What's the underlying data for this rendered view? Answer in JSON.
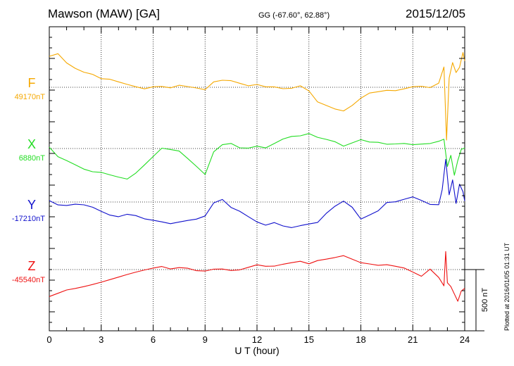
{
  "header": {
    "station": "Mawson (MAW)  [GA]",
    "coords": "GG (-67.60°,  62.88°)",
    "date": "2015/12/05"
  },
  "plotted_note": "Plotted at 2016/01/05 01:31  UT",
  "scale_label": "500 nT",
  "colors": {
    "F": "#f5a800",
    "X": "#22dd22",
    "Y": "#1010cc",
    "Z": "#ee1111"
  },
  "chart_data": {
    "type": "line",
    "xlabel": "U T (hour)",
    "xlim": [
      0,
      24
    ],
    "xticks": [
      "0",
      "3",
      "6",
      "9",
      "12",
      "15",
      "18",
      "21",
      "24"
    ],
    "ylim_nT": [
      -4.2,
      2.5
    ],
    "series": [
      {
        "name": "F",
        "baseline_label": "49170nT",
        "baseline_nT": 0,
        "x": [
          0,
          0.5,
          1,
          1.5,
          2,
          2.5,
          3,
          3.5,
          4,
          4.5,
          5,
          5.5,
          6,
          6.5,
          7,
          7.5,
          8,
          8.5,
          9,
          9.5,
          10,
          10.5,
          11,
          11.5,
          12,
          12.5,
          13,
          13.5,
          14,
          14.5,
          15,
          15.5,
          16,
          16.5,
          17,
          17.5,
          18,
          18.5,
          19,
          19.5,
          20,
          20.5,
          21,
          21.5,
          22,
          22.5,
          22.8,
          22.95,
          23.1,
          23.3,
          23.5,
          23.7,
          23.9,
          24
        ],
        "y": [
          0.8,
          0.85,
          0.6,
          0.45,
          0.35,
          0.3,
          0.2,
          0.2,
          0.15,
          0.1,
          0.05,
          0.0,
          0.05,
          0.05,
          0.0,
          0.05,
          0.0,
          -0.05,
          -0.1,
          0.1,
          0.15,
          0.15,
          0.1,
          0.05,
          0.1,
          0.05,
          0.05,
          0.0,
          0.0,
          0.05,
          -0.1,
          -0.4,
          -0.5,
          -0.6,
          -0.65,
          -0.5,
          -0.3,
          -0.15,
          -0.1,
          -0.05,
          -0.05,
          0.0,
          0.05,
          0.05,
          0.0,
          0.1,
          0.5,
          -1.4,
          0.2,
          0.6,
          0.35,
          0.5,
          0.9,
          0.7
        ]
      },
      {
        "name": "X",
        "baseline_label": "6880nT",
        "baseline_nT": 0,
        "x": [
          0,
          0.5,
          1,
          1.5,
          2,
          2.5,
          3,
          3.5,
          4,
          4.5,
          5,
          5.5,
          6,
          6.5,
          7,
          7.5,
          8,
          8.5,
          9,
          9.5,
          10,
          10.5,
          11,
          11.5,
          12,
          12.5,
          13,
          13.5,
          14,
          14.5,
          15,
          15.5,
          16,
          16.5,
          17,
          17.5,
          18,
          18.5,
          19,
          19.5,
          20,
          20.5,
          21,
          21.5,
          22,
          22.5,
          22.8,
          23.0,
          23.2,
          23.4,
          23.6,
          23.8,
          24
        ],
        "y": [
          0.0,
          -0.25,
          -0.35,
          -0.45,
          -0.55,
          -0.6,
          -0.6,
          -0.65,
          -0.7,
          -0.75,
          -0.6,
          -0.4,
          -0.2,
          0.0,
          -0.05,
          -0.1,
          -0.3,
          -0.5,
          -0.7,
          -0.1,
          0.1,
          0.15,
          0.05,
          0.05,
          0.1,
          0.05,
          0.15,
          0.25,
          0.3,
          0.3,
          0.35,
          0.25,
          0.2,
          0.15,
          0.05,
          0.15,
          0.25,
          0.2,
          0.2,
          0.15,
          0.15,
          0.15,
          0.1,
          0.1,
          0.1,
          0.15,
          0.2,
          -0.5,
          -0.2,
          -0.7,
          -0.3,
          0.0,
          0.05
        ]
      },
      {
        "name": "Y",
        "baseline_label": "-17210nT",
        "baseline_nT": 0,
        "x": [
          0,
          0.5,
          1,
          1.5,
          2,
          2.5,
          3,
          3.5,
          4,
          4.5,
          5,
          5.5,
          6,
          6.5,
          7,
          7.5,
          8,
          8.5,
          9,
          9.5,
          10,
          10.5,
          11,
          11.5,
          12,
          12.5,
          13,
          13.5,
          14,
          14.5,
          15,
          15.5,
          16,
          16.5,
          17,
          17.5,
          18,
          18.5,
          19,
          19.5,
          20,
          20.5,
          21,
          21.5,
          22,
          22.5,
          22.7,
          22.9,
          23.1,
          23.3,
          23.5,
          23.7,
          23.9,
          24
        ],
        "y": [
          0.0,
          -0.1,
          -0.1,
          -0.05,
          -0.05,
          -0.1,
          -0.2,
          -0.3,
          -0.35,
          -0.3,
          -0.35,
          -0.45,
          -0.5,
          -0.55,
          -0.6,
          -0.55,
          -0.5,
          -0.45,
          -0.35,
          0.0,
          0.1,
          -0.1,
          -0.2,
          -0.35,
          -0.5,
          -0.6,
          -0.55,
          -0.65,
          -0.7,
          -0.65,
          -0.6,
          -0.55,
          -0.3,
          -0.1,
          0.05,
          -0.1,
          -0.4,
          -0.3,
          -0.2,
          0.0,
          0.0,
          0.05,
          0.1,
          0.0,
          -0.1,
          -0.1,
          0.3,
          1.1,
          0.2,
          0.6,
          0.0,
          0.5,
          0.3,
          0.05
        ]
      },
      {
        "name": "Z",
        "baseline_label": "-45540nT",
        "baseline_nT": 0,
        "x": [
          0,
          0.5,
          1,
          1.5,
          2,
          2.5,
          3,
          3.5,
          4,
          4.5,
          5,
          5.5,
          6,
          6.5,
          7,
          7.5,
          8,
          8.5,
          9,
          9.5,
          10,
          10.5,
          11,
          11.5,
          12,
          12.5,
          13,
          13.5,
          14,
          14.5,
          15,
          15.5,
          16,
          16.5,
          17,
          17.5,
          18,
          18.5,
          19,
          19.5,
          20,
          20.5,
          21,
          21.5,
          22,
          22.5,
          22.8,
          22.9,
          23.0,
          23.2,
          23.4,
          23.6,
          23.8,
          24
        ],
        "y": [
          -0.7,
          -0.6,
          -0.5,
          -0.45,
          -0.4,
          -0.35,
          -0.3,
          -0.25,
          -0.2,
          -0.15,
          -0.1,
          -0.05,
          0.0,
          0.05,
          0.0,
          0.05,
          0.05,
          0.0,
          0.0,
          0.05,
          0.05,
          0.0,
          0.0,
          0.05,
          0.1,
          0.05,
          0.05,
          0.1,
          0.15,
          0.2,
          0.15,
          0.25,
          0.3,
          0.35,
          0.4,
          0.3,
          0.2,
          0.15,
          0.1,
          0.1,
          0.05,
          0.0,
          -0.1,
          -0.2,
          0.0,
          -0.2,
          -0.4,
          0.5,
          -0.3,
          -0.4,
          -0.6,
          -0.8,
          -0.55,
          -0.5
        ]
      }
    ]
  }
}
